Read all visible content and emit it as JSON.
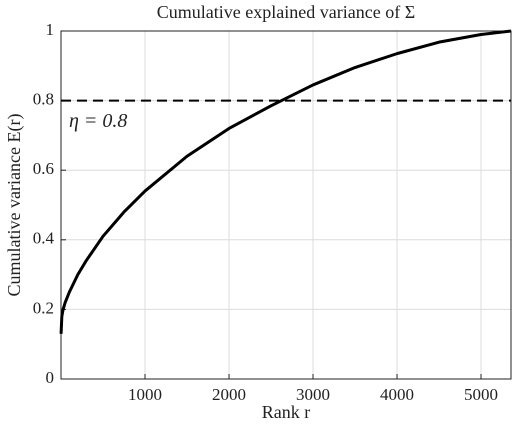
{
  "chart_data": {
    "type": "line",
    "title": "Cumulative explained variance of Σ",
    "x_label": "Rank r",
    "y_label": "Cumulative variance E(r)",
    "x": [
      1,
      10,
      25,
      50,
      100,
      200,
      300,
      500,
      750,
      1000,
      1500,
      2000,
      2500,
      3000,
      3500,
      4000,
      4500,
      5000,
      5357
    ],
    "values": [
      0.13,
      0.18,
      0.2,
      0.22,
      0.25,
      0.3,
      0.34,
      0.41,
      0.48,
      0.54,
      0.64,
      0.72,
      0.785,
      0.845,
      0.895,
      0.935,
      0.968,
      0.99,
      1
    ],
    "color": "#000000",
    "xlim": [
      0,
      5357
    ],
    "ylim": [
      0,
      1
    ],
    "xticks": [
      1000,
      2000,
      3000,
      4000,
      5000
    ],
    "yticks": [
      0,
      0.2,
      0.4,
      0.6,
      0.8,
      1
    ],
    "grid": true,
    "annotations": [
      {
        "y": 0.8,
        "text": "η = 0.8",
        "style": "dashed"
      }
    ]
  }
}
